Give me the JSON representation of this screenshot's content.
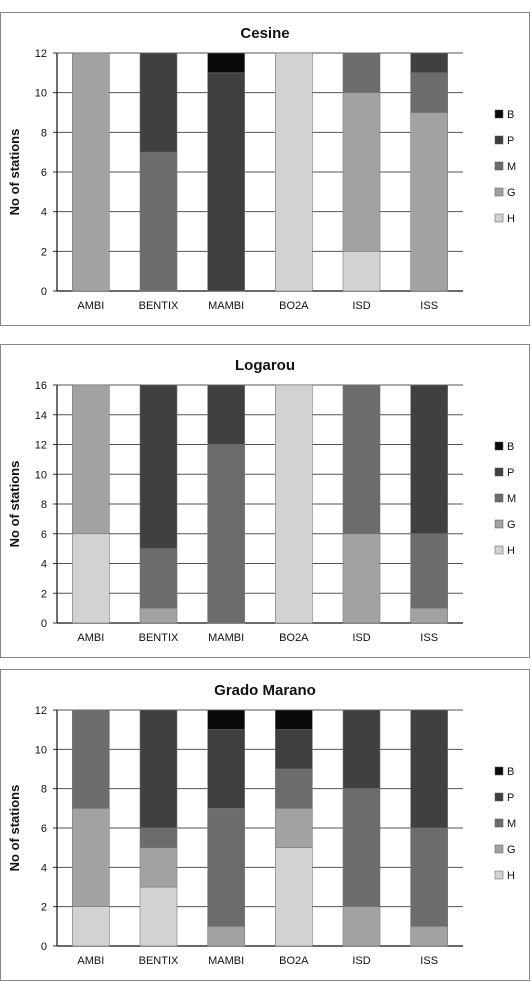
{
  "chart_data": [
    {
      "type": "bar",
      "stacked": true,
      "title": "Cesine",
      "ylabel": "No of stations",
      "xlabel": "",
      "ylim": [
        0,
        12
      ],
      "yticks": [
        0,
        2,
        4,
        6,
        8,
        10,
        12
      ],
      "categories": [
        "AMBI",
        "BENTIX",
        "MAMBI",
        "BO2A",
        "ISD",
        "ISS"
      ],
      "series": [
        {
          "name": "H",
          "values": [
            0,
            0,
            0,
            12,
            2,
            0
          ]
        },
        {
          "name": "G",
          "values": [
            12,
            0,
            0,
            0,
            8,
            9
          ]
        },
        {
          "name": "M",
          "values": [
            0,
            7,
            0,
            0,
            2,
            2
          ]
        },
        {
          "name": "P",
          "values": [
            0,
            5,
            11,
            0,
            0,
            1
          ]
        },
        {
          "name": "B",
          "values": [
            0,
            0,
            1,
            0,
            0,
            0
          ]
        }
      ],
      "legend_order": [
        "B",
        "P",
        "M",
        "G",
        "H"
      ],
      "legend_position": "right",
      "grid": true
    },
    {
      "type": "bar",
      "stacked": true,
      "title": "Logarou",
      "ylabel": "No of stations",
      "xlabel": "",
      "ylim": [
        0,
        16
      ],
      "yticks": [
        0,
        2,
        4,
        6,
        8,
        10,
        12,
        14,
        16
      ],
      "categories": [
        "AMBI",
        "BENTIX",
        "MAMBI",
        "BO2A",
        "ISD",
        "ISS"
      ],
      "series": [
        {
          "name": "H",
          "values": [
            6,
            0,
            0,
            16,
            0,
            0
          ]
        },
        {
          "name": "G",
          "values": [
            10,
            1,
            0,
            0,
            6,
            1
          ]
        },
        {
          "name": "M",
          "values": [
            0,
            4,
            12,
            0,
            10,
            5
          ]
        },
        {
          "name": "P",
          "values": [
            0,
            11,
            4,
            0,
            0,
            10
          ]
        },
        {
          "name": "B",
          "values": [
            0,
            0,
            0,
            0,
            0,
            0
          ]
        }
      ],
      "legend_order": [
        "B",
        "P",
        "M",
        "G",
        "H"
      ],
      "legend_position": "right",
      "grid": true
    },
    {
      "type": "bar",
      "stacked": true,
      "title": "Grado Marano",
      "ylabel": "No of stations",
      "xlabel": "",
      "ylim": [
        0,
        12
      ],
      "yticks": [
        0,
        2,
        4,
        6,
        8,
        10,
        12
      ],
      "categories": [
        "AMBI",
        "BENTIX",
        "MAMBI",
        "BO2A",
        "ISD",
        "ISS"
      ],
      "series": [
        {
          "name": "H",
          "values": [
            2,
            3,
            0,
            5,
            0,
            0
          ]
        },
        {
          "name": "G",
          "values": [
            5,
            2,
            1,
            2,
            2,
            1
          ]
        },
        {
          "name": "M",
          "values": [
            5,
            1,
            6,
            2,
            6,
            5
          ]
        },
        {
          "name": "P",
          "values": [
            0,
            6,
            4,
            2,
            4,
            6
          ]
        },
        {
          "name": "B",
          "values": [
            0,
            0,
            1,
            1,
            0,
            0
          ]
        }
      ],
      "legend_order": [
        "B",
        "P",
        "M",
        "G",
        "H"
      ],
      "legend_position": "right",
      "grid": true
    }
  ],
  "colors": {
    "B": "#0a0a0a",
    "P": "#404040",
    "M": "#6c6c6c",
    "G": "#a2a2a2",
    "H": "#d2d2d2"
  }
}
